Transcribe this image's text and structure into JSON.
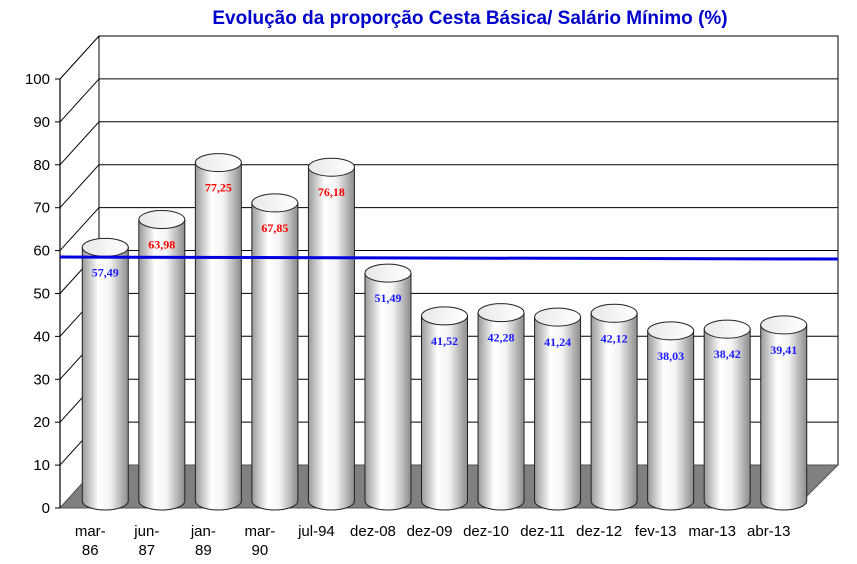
{
  "chart_data": {
    "type": "bar",
    "title": "Evolução da proporção Cesta Básica/ Salário Mínimo (%)",
    "categories": [
      [
        "mar-",
        "86"
      ],
      [
        "jun-",
        "87"
      ],
      [
        "jan-",
        "89"
      ],
      [
        "mar-",
        "90"
      ],
      [
        "jul-94"
      ],
      [
        "dez-08"
      ],
      [
        "dez-09"
      ],
      [
        "dez-10"
      ],
      [
        "dez-11"
      ],
      [
        "dez-12"
      ],
      [
        "fev-13"
      ],
      [
        "mar-13"
      ],
      [
        "abr-13"
      ]
    ],
    "values": [
      57.49,
      63.98,
      77.25,
      67.85,
      76.18,
      51.49,
      41.52,
      42.28,
      41.24,
      42.12,
      38.03,
      38.42,
      39.41
    ],
    "data_labels": [
      "57,49",
      "63,98",
      "77,25",
      "67,85",
      "76,18",
      "51,49",
      "41,52",
      "42,28",
      "41,24",
      "42,12",
      "38,03",
      "38,42",
      "39,41"
    ],
    "label_colors": [
      "#1a1aff",
      "#ff0000",
      "#ff0000",
      "#ff0000",
      "#ff0000",
      "#1a1aff",
      "#1a1aff",
      "#1a1aff",
      "#1a1aff",
      "#1a1aff",
      "#1a1aff",
      "#1a1aff",
      "#1a1aff"
    ],
    "ylim": [
      0,
      100
    ],
    "yticks": [
      0,
      10,
      20,
      30,
      40,
      50,
      60,
      70,
      80,
      90,
      100
    ],
    "reference_line": {
      "value": 58.5,
      "color": "#0000e0"
    },
    "grid": true,
    "style": "3d-cylinder",
    "colors": {
      "title": "#0000cc",
      "bar": "#ffffff",
      "floor": "#808080"
    }
  }
}
